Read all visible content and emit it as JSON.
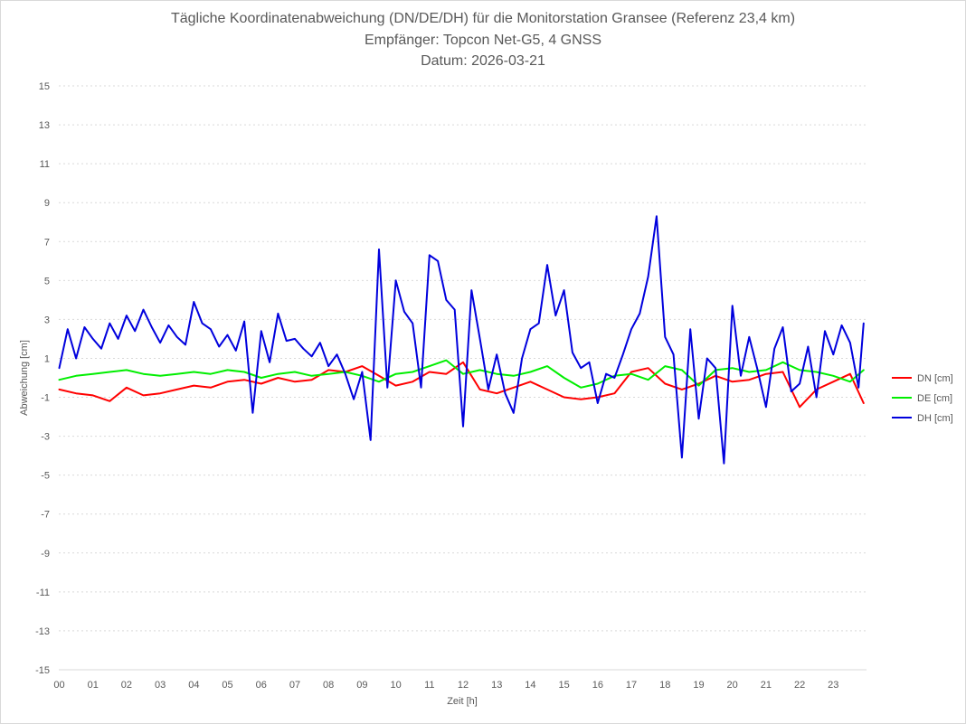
{
  "chart_data": {
    "type": "line",
    "title": "Tägliche Koordinatenabweichung (DN/DE/DH) für die Monitorstation Gransee (Referenz 23,4 km)",
    "subtitle": "Empfänger: Topcon Net-G5, 4 GNSS",
    "date_label": "Datum: 2026-03-21",
    "xlabel": "Zeit [h]",
    "ylabel": "Abweichung [cm]",
    "xlim": [
      0,
      24
    ],
    "ylim": [
      -15,
      15
    ],
    "x_ticks": [
      "00",
      "01",
      "02",
      "03",
      "04",
      "05",
      "06",
      "07",
      "08",
      "09",
      "10",
      "11",
      "12",
      "13",
      "14",
      "15",
      "16",
      "17",
      "18",
      "19",
      "20",
      "21",
      "22",
      "23"
    ],
    "y_ticks": [
      15,
      13,
      11,
      9,
      7,
      5,
      3,
      1,
      -1,
      -3,
      -5,
      -7,
      -9,
      -11,
      -13,
      -15
    ],
    "grid": true,
    "legend_position": "right",
    "series": [
      {
        "name": "DN [cm]",
        "color": "#ff0000",
        "x": [
          0,
          0.5,
          1,
          1.5,
          2,
          2.5,
          3,
          3.5,
          4,
          4.5,
          5,
          5.5,
          6,
          6.5,
          7,
          7.5,
          8,
          8.5,
          9,
          9.5,
          10,
          10.5,
          11,
          11.5,
          12,
          12.5,
          13,
          13.5,
          14,
          14.5,
          15,
          15.5,
          16,
          16.5,
          17,
          17.5,
          18,
          18.5,
          19,
          19.5,
          20,
          20.5,
          21,
          21.5,
          22,
          22.5,
          23,
          23.5,
          23.9
        ],
        "y": [
          -0.6,
          -0.8,
          -0.9,
          -1.2,
          -0.5,
          -0.9,
          -0.8,
          -0.6,
          -0.4,
          -0.5,
          -0.2,
          -0.1,
          -0.3,
          0.0,
          -0.2,
          -0.1,
          0.4,
          0.3,
          0.6,
          0.1,
          -0.4,
          -0.2,
          0.3,
          0.2,
          0.8,
          -0.6,
          -0.8,
          -0.5,
          -0.2,
          -0.6,
          -1.0,
          -1.1,
          -1.0,
          -0.8,
          0.3,
          0.5,
          -0.3,
          -0.6,
          -0.3,
          0.1,
          -0.2,
          -0.1,
          0.2,
          0.3,
          -1.5,
          -0.6,
          -0.2,
          0.2,
          -1.3
        ]
      },
      {
        "name": "DE [cm]",
        "color": "#00ee00",
        "x": [
          0,
          0.5,
          1,
          1.5,
          2,
          2.5,
          3,
          3.5,
          4,
          4.5,
          5,
          5.5,
          6,
          6.5,
          7,
          7.5,
          8,
          8.5,
          9,
          9.5,
          10,
          10.5,
          11,
          11.5,
          12,
          12.5,
          13,
          13.5,
          14,
          14.5,
          15,
          15.5,
          16,
          16.5,
          17,
          17.5,
          18,
          18.5,
          19,
          19.5,
          20,
          20.5,
          21,
          21.5,
          22,
          22.5,
          23,
          23.5,
          23.9
        ],
        "y": [
          -0.1,
          0.1,
          0.2,
          0.3,
          0.4,
          0.2,
          0.1,
          0.2,
          0.3,
          0.2,
          0.4,
          0.3,
          0.0,
          0.2,
          0.3,
          0.1,
          0.2,
          0.3,
          0.1,
          -0.2,
          0.2,
          0.3,
          0.6,
          0.9,
          0.2,
          0.4,
          0.2,
          0.1,
          0.3,
          0.6,
          0.0,
          -0.5,
          -0.3,
          0.1,
          0.2,
          -0.1,
          0.6,
          0.4,
          -0.4,
          0.4,
          0.5,
          0.3,
          0.4,
          0.8,
          0.4,
          0.3,
          0.1,
          -0.2,
          0.4
        ]
      },
      {
        "name": "DH [cm]",
        "color": "#0000dd",
        "x": [
          0,
          0.25,
          0.5,
          0.75,
          1,
          1.25,
          1.5,
          1.75,
          2,
          2.25,
          2.5,
          2.75,
          3,
          3.25,
          3.5,
          3.75,
          4,
          4.25,
          4.5,
          4.75,
          5,
          5.25,
          5.5,
          5.75,
          6,
          6.25,
          6.5,
          6.75,
          7,
          7.25,
          7.5,
          7.75,
          8,
          8.25,
          8.5,
          8.75,
          9,
          9.25,
          9.5,
          9.75,
          10,
          10.25,
          10.5,
          10.75,
          11,
          11.25,
          11.5,
          11.75,
          12,
          12.25,
          12.5,
          12.75,
          13,
          13.25,
          13.5,
          13.75,
          14,
          14.25,
          14.5,
          14.75,
          15,
          15.25,
          15.5,
          15.75,
          16,
          16.25,
          16.5,
          16.75,
          17,
          17.25,
          17.5,
          17.75,
          18,
          18.25,
          18.5,
          18.75,
          19,
          19.25,
          19.5,
          19.75,
          20,
          20.25,
          20.5,
          20.75,
          21,
          21.25,
          21.5,
          21.75,
          22,
          22.25,
          22.5,
          22.75,
          23,
          23.25,
          23.5,
          23.75,
          23.9
        ],
        "y": [
          0.5,
          2.5,
          1.0,
          2.6,
          2.0,
          1.5,
          2.8,
          2.0,
          3.2,
          2.4,
          3.5,
          2.6,
          1.8,
          2.7,
          2.1,
          1.7,
          3.9,
          2.8,
          2.5,
          1.6,
          2.2,
          1.4,
          2.9,
          -1.8,
          2.4,
          0.8,
          3.3,
          1.9,
          2.0,
          1.5,
          1.1,
          1.8,
          0.6,
          1.2,
          0.2,
          -1.1,
          0.3,
          -3.2,
          6.6,
          -0.5,
          5.0,
          3.4,
          2.8,
          -0.5,
          6.3,
          6.0,
          4.0,
          3.5,
          -2.5,
          4.5,
          2.0,
          -0.6,
          1.2,
          -0.8,
          -1.8,
          1.0,
          2.5,
          2.8,
          5.8,
          3.2,
          4.5,
          1.3,
          0.5,
          0.8,
          -1.3,
          0.2,
          0.0,
          1.2,
          2.5,
          3.3,
          5.2,
          8.3,
          2.1,
          1.2,
          -4.1,
          2.5,
          -2.1,
          1.0,
          0.5,
          -4.4,
          3.7,
          0.1,
          2.1,
          0.4,
          -1.5,
          1.5,
          2.6,
          -0.7,
          -0.3,
          1.6,
          -1.0,
          2.4,
          1.2,
          2.7,
          1.8,
          -0.5,
          2.8
        ]
      }
    ]
  }
}
